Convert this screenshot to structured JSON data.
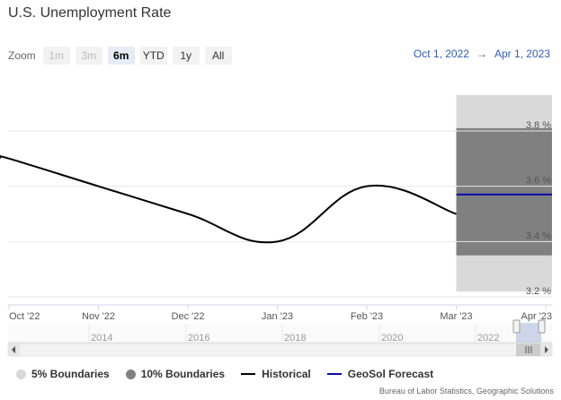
{
  "title": "U.S. Unemployment Rate",
  "zoom": {
    "label": "Zoom",
    "buttons": [
      {
        "label": "1m",
        "state": "disabled"
      },
      {
        "label": "3m",
        "state": "disabled"
      },
      {
        "label": "6m",
        "state": "active"
      },
      {
        "label": "YTD",
        "state": "normal"
      },
      {
        "label": "1y",
        "state": "normal"
      },
      {
        "label": "All",
        "state": "normal"
      }
    ]
  },
  "range": {
    "from": "Oct 1, 2022",
    "arrow": "→",
    "to": "Apr 1, 2023"
  },
  "legend": [
    {
      "label": "5% Boundaries",
      "color": "#d9d9d9",
      "kind": "dot"
    },
    {
      "label": "10% Boundaries",
      "color": "#808080",
      "kind": "dot"
    },
    {
      "label": "Historical",
      "color": "#000000",
      "kind": "line"
    },
    {
      "label": "GeoSol Forecast",
      "color": "#0a0aa8",
      "kind": "line"
    }
  ],
  "source": "Bureau of Labor Statistics, Geographic Solutions",
  "navigator": {
    "years": [
      "2014",
      "2016",
      "2018",
      "2020",
      "2022"
    ]
  },
  "chart_data": {
    "type": "line",
    "title": "U.S. Unemployment Rate",
    "x_labels": [
      "Oct '22",
      "Nov '22",
      "Dec '22",
      "Jan '23",
      "Feb '23",
      "Mar '23",
      "Apr '23"
    ],
    "y_ticks": [
      "3.2 %",
      "3.4 %",
      "3.6 %",
      "3.8 %"
    ],
    "ylim": [
      3.2,
      3.8
    ],
    "series": [
      {
        "name": "Historical",
        "color": "#000000",
        "x": [
          "Oct '22",
          "Nov '22",
          "Dec '22",
          "Jan '23",
          "Feb '23",
          "Mar '23"
        ],
        "values": [
          3.7,
          3.6,
          3.5,
          3.4,
          3.6,
          3.5
        ]
      },
      {
        "name": "GeoSol Forecast",
        "color": "#0a0aa8",
        "x": [
          "Mar '23",
          "Apr '23"
        ],
        "values": [
          3.57,
          3.57
        ]
      }
    ],
    "bands": [
      {
        "name": "5% Boundaries",
        "color": "#d9d9d9",
        "range": [
          3.15,
          4.0
        ]
      },
      {
        "name": "10% Boundaries",
        "color": "#808080",
        "range": [
          3.35,
          3.81
        ]
      }
    ],
    "grid": true
  }
}
